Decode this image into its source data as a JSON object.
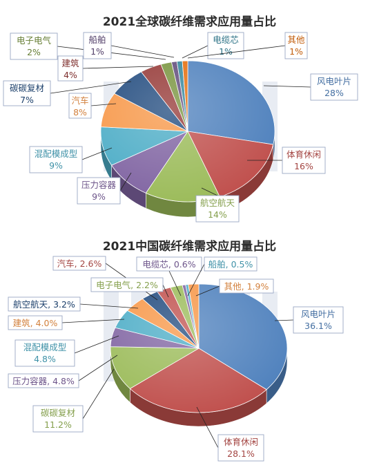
{
  "colors": {
    "blue": "#4f81bd",
    "red": "#c0504d",
    "green": "#9bbb59",
    "purple": "#8064a2",
    "aqua": "#4bacc6",
    "orange": "#f79646",
    "navy": "#1f497d",
    "darkred": "#943634"
  },
  "chart_data": [
    {
      "type": "pie",
      "title": "2021全球碳纤维需求应用量占比",
      "unit": "%",
      "slices": [
        {
          "name": "风电叶片",
          "value": 28,
          "label": "28%",
          "color": "#4f81bd"
        },
        {
          "name": "体育休闲",
          "value": 16,
          "label": "16%",
          "color": "#c0504d"
        },
        {
          "name": "航空航天",
          "value": 14,
          "label": "14%",
          "color": "#9bbb59"
        },
        {
          "name": "压力容器",
          "value": 9,
          "label": "9%",
          "color": "#8064a2"
        },
        {
          "name": "混配模成型",
          "value": 9,
          "label": "9%",
          "color": "#4bacc6"
        },
        {
          "name": "汽车",
          "value": 8,
          "label": "8%",
          "color": "#f79646"
        },
        {
          "name": "碳碳复材",
          "value": 7,
          "label": "7%",
          "color": "#1f497d"
        },
        {
          "name": "建筑",
          "value": 4,
          "label": "4%",
          "color": "#943634"
        },
        {
          "name": "电子电气",
          "value": 2,
          "label": "2%",
          "color": "#77933c"
        },
        {
          "name": "船舶",
          "value": 1,
          "label": "1%",
          "color": "#5f497a"
        },
        {
          "name": "电缆芯",
          "value": 1,
          "label": "1%",
          "color": "#31859c"
        },
        {
          "name": "其他",
          "value": 1,
          "label": "1%",
          "color": "#e46c0a"
        }
      ]
    },
    {
      "type": "pie",
      "title": "2021中国碳纤维需求应用量占比",
      "unit": "%",
      "slices": [
        {
          "name": "风电叶片",
          "value": 36.1,
          "label": "36.1%",
          "color": "#4f81bd"
        },
        {
          "name": "体育休闲",
          "value": 28.1,
          "label": "28.1%",
          "color": "#c0504d"
        },
        {
          "name": "碳碳复材",
          "value": 11.2,
          "label": "11.2%",
          "color": "#9bbb59"
        },
        {
          "name": "压力容器",
          "value": 4.8,
          "label": "4.8%",
          "color": "#8064a2"
        },
        {
          "name": "混配模成型",
          "value": 4.8,
          "label": "4.8%",
          "color": "#4bacc6"
        },
        {
          "name": "建筑",
          "value": 4.0,
          "label": "4.0%",
          "color": "#f79646"
        },
        {
          "name": "航空航天",
          "value": 3.2,
          "label": "3.2%",
          "color": "#1f497d"
        },
        {
          "name": "汽车",
          "value": 2.6,
          "label": "2.6%",
          "color": "#c0504d"
        },
        {
          "name": "电子电气",
          "value": 2.2,
          "label": "2.2%",
          "color": "#9bbb59"
        },
        {
          "name": "电缆芯",
          "value": 0.6,
          "label": "0.6%",
          "color": "#8064a2"
        },
        {
          "name": "船舶",
          "value": 0.5,
          "label": "0.5%",
          "color": "#4bacc6"
        },
        {
          "name": "其他",
          "value": 1.9,
          "label": "1.9%",
          "color": "#f79646"
        }
      ]
    }
  ]
}
